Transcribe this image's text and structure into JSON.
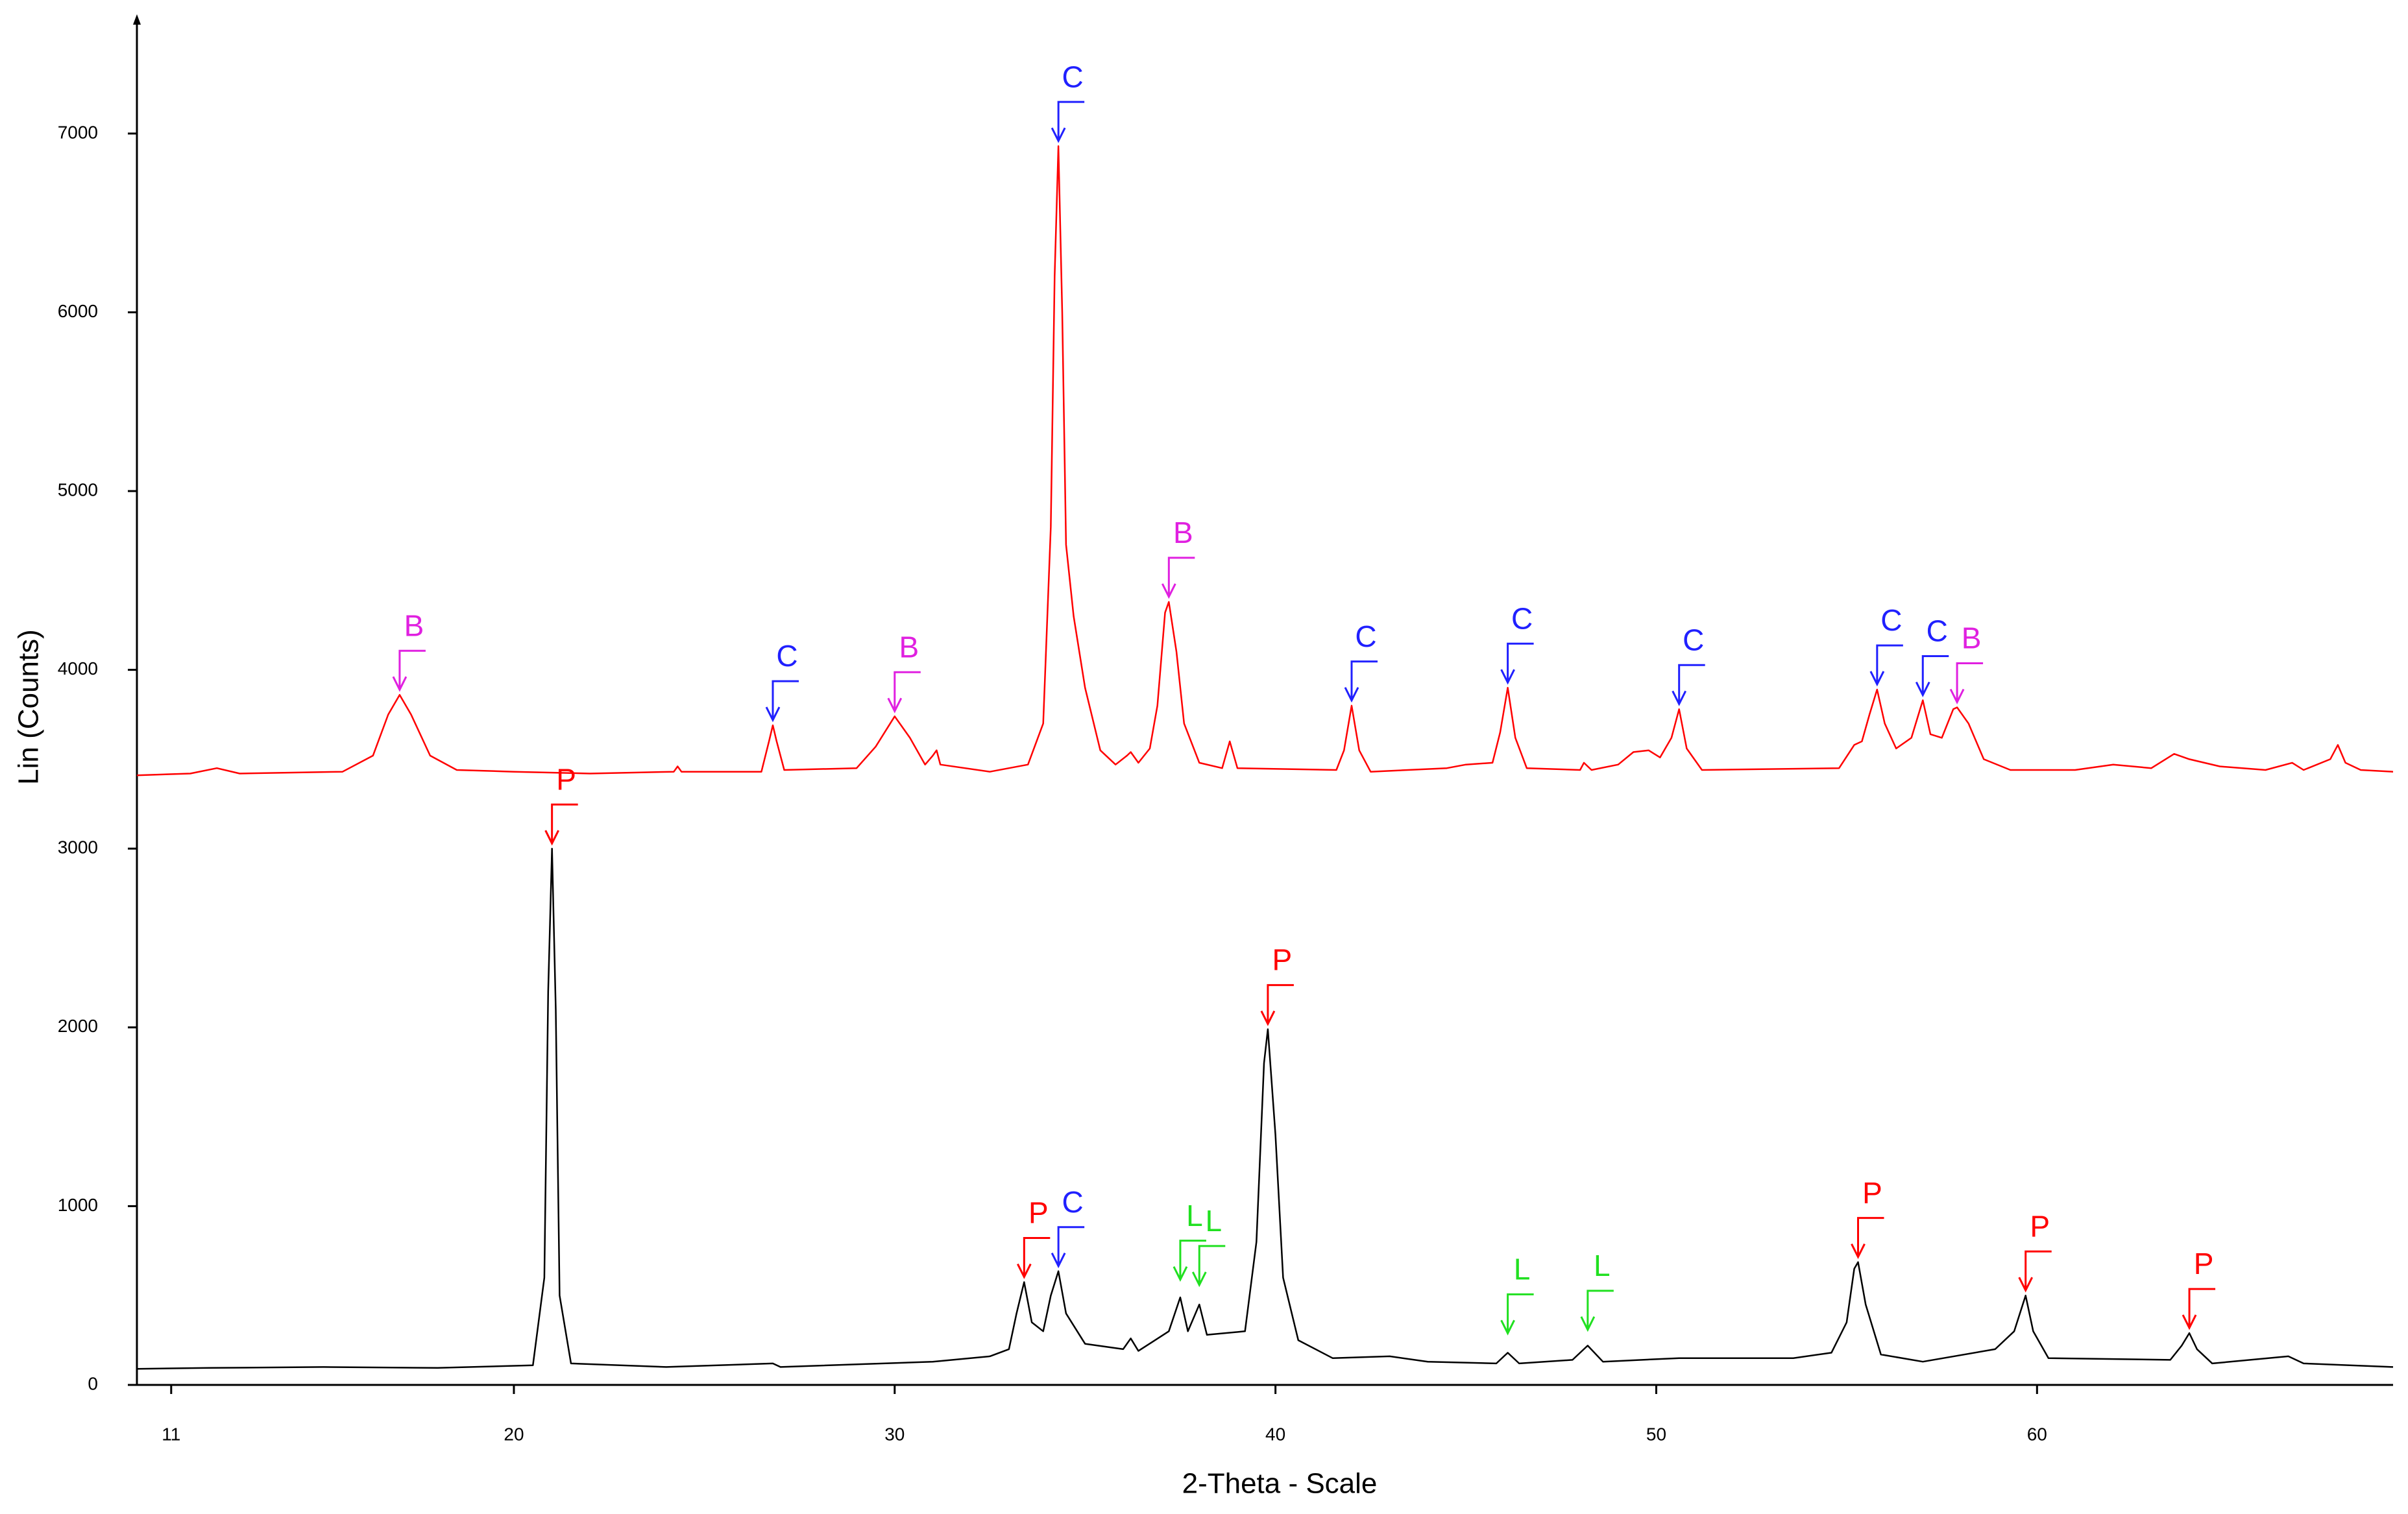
{
  "chart_data": {
    "type": "line",
    "xlabel": "2-Theta - Scale",
    "ylabel": "Lin (Counts)",
    "xlim": [
      10.1,
      69.35
    ],
    "ylim": [
      0,
      7620
    ],
    "xticks": [
      11,
      20,
      30,
      40,
      50,
      60
    ],
    "yticks": [
      0,
      1000,
      2000,
      3000,
      4000,
      5000,
      6000,
      7000
    ],
    "grid": false,
    "series": [
      {
        "color": "#ff0000",
        "x": [
          10.1,
          11.5,
          12.2,
          12.8,
          15.5,
          16.3,
          16.7,
          17.0,
          17.3,
          17.8,
          18.5,
          20,
          22,
          24.2,
          24.3,
          24.4,
          26.5,
          26.7,
          26.8,
          26.9,
          27.1,
          29.0,
          29.5,
          30.0,
          30.4,
          30.8,
          31.0,
          31.1,
          31.2,
          32.5,
          33.5,
          33.9,
          34.1,
          34.2,
          34.3,
          34.4,
          34.5,
          34.7,
          35.0,
          35.4,
          35.8,
          36.1,
          36.2,
          36.4,
          36.7,
          36.9,
          37.1,
          37.2,
          37.4,
          37.6,
          38.0,
          38.6,
          38.8,
          39.0,
          41.6,
          41.8,
          42.0,
          42.2,
          42.5,
          44.5,
          45.0,
          45.7,
          45.9,
          46.1,
          46.3,
          46.6,
          48.0,
          48.1,
          48.3,
          49.0,
          49.4,
          49.8,
          50.1,
          50.4,
          50.6,
          50.8,
          51.2,
          54.8,
          55.2,
          55.4,
          55.6,
          55.8,
          56.0,
          56.3,
          56.7,
          57.0,
          57.2,
          57.5,
          57.8,
          57.9,
          58.2,
          58.6,
          59.3,
          61.0,
          62.0,
          63.0,
          63.6,
          64.0,
          64.8,
          66.0,
          66.7,
          67.0,
          67.7,
          67.9,
          68.1,
          68.5,
          69.35
        ],
        "values": [
          3410,
          3420,
          3450,
          3420,
          3430,
          3520,
          3750,
          3860,
          3750,
          3520,
          3440,
          3430,
          3420,
          3430,
          3460,
          3430,
          3430,
          3600,
          3690,
          3600,
          3440,
          3450,
          3570,
          3740,
          3620,
          3470,
          3520,
          3550,
          3470,
          3430,
          3470,
          3700,
          4800,
          6200,
          6930,
          6000,
          4700,
          4300,
          3900,
          3550,
          3470,
          3520,
          3540,
          3480,
          3560,
          3800,
          4320,
          4380,
          4100,
          3700,
          3480,
          3450,
          3600,
          3450,
          3440,
          3550,
          3800,
          3550,
          3430,
          3450,
          3470,
          3480,
          3650,
          3900,
          3620,
          3450,
          3440,
          3480,
          3440,
          3470,
          3540,
          3550,
          3510,
          3620,
          3780,
          3560,
          3440,
          3450,
          3580,
          3600,
          3750,
          3890,
          3700,
          3560,
          3620,
          3830,
          3640,
          3620,
          3780,
          3790,
          3700,
          3500,
          3440,
          3440,
          3470,
          3450,
          3530,
          3500,
          3460,
          3440,
          3480,
          3440,
          3500,
          3580,
          3480,
          3440,
          3430
        ]
      },
      {
        "color": "#000000",
        "x": [
          10.1,
          12,
          15,
          18,
          20.5,
          20.8,
          20.9,
          21.0,
          21.1,
          21.2,
          21.5,
          24,
          26.8,
          27,
          31,
          32.5,
          33.0,
          33.2,
          33.4,
          33.6,
          33.9,
          34.1,
          34.3,
          34.5,
          35.0,
          36.0,
          36.2,
          36.4,
          37.2,
          37.5,
          37.7,
          38.0,
          38.2,
          39.2,
          39.5,
          39.7,
          39.8,
          40.0,
          40.2,
          40.6,
          41.5,
          43,
          44,
          45.8,
          46.1,
          46.4,
          47.8,
          48.2,
          48.6,
          50.6,
          53.6,
          54.6,
          55.0,
          55.2,
          55.3,
          55.5,
          55.9,
          57,
          58.9,
          59.4,
          59.7,
          59.9,
          60.3,
          63.5,
          63.8,
          64.0,
          64.2,
          64.6,
          66.6,
          67,
          69.35
        ],
        "values": [
          90,
          95,
          100,
          95,
          110,
          600,
          2200,
          3000,
          2100,
          500,
          120,
          100,
          120,
          100,
          130,
          160,
          200,
          400,
          575,
          350,
          300,
          500,
          636,
          400,
          230,
          200,
          260,
          190,
          300,
          490,
          300,
          450,
          280,
          300,
          800,
          1800,
          1990,
          1400,
          600,
          250,
          150,
          160,
          130,
          120,
          180,
          120,
          140,
          220,
          130,
          150,
          150,
          180,
          350,
          650,
          687,
          450,
          170,
          130,
          200,
          300,
          500,
          300,
          150,
          140,
          220,
          290,
          200,
          120,
          160,
          120,
          100
        ]
      }
    ],
    "annotations": [
      {
        "text": "B",
        "x": 17.0,
        "y": 3860,
        "color": "#e020e0"
      },
      {
        "text": "C",
        "x": 26.8,
        "y": 3690,
        "color": "#2020ff"
      },
      {
        "text": "B",
        "x": 30.0,
        "y": 3740,
        "color": "#e020e0"
      },
      {
        "text": "C",
        "x": 34.3,
        "y": 6930,
        "color": "#2020ff"
      },
      {
        "text": "B",
        "x": 37.2,
        "y": 4380,
        "color": "#e020e0"
      },
      {
        "text": "C",
        "x": 42.0,
        "y": 3800,
        "color": "#2020ff"
      },
      {
        "text": "C",
        "x": 46.1,
        "y": 3900,
        "color": "#2020ff"
      },
      {
        "text": "C",
        "x": 50.6,
        "y": 3780,
        "color": "#2020ff"
      },
      {
        "text": "C",
        "x": 55.8,
        "y": 3890,
        "color": "#2020ff"
      },
      {
        "text": "C",
        "x": 57.0,
        "y": 3830,
        "color": "#2020ff"
      },
      {
        "text": "B",
        "x": 57.9,
        "y": 3790,
        "color": "#e020e0"
      },
      {
        "text": "P",
        "x": 21.0,
        "y": 3000,
        "color": "#ff0000"
      },
      {
        "text": "P",
        "x": 33.4,
        "y": 575,
        "color": "#ff0000"
      },
      {
        "text": "C",
        "x": 34.3,
        "y": 636,
        "color": "#2020ff"
      },
      {
        "text": "L",
        "x": 37.5,
        "y": 560,
        "color": "#20e020"
      },
      {
        "text": "L",
        "x": 38.0,
        "y": 530,
        "color": "#20e020"
      },
      {
        "text": "P",
        "x": 39.8,
        "y": 1990,
        "color": "#ff0000"
      },
      {
        "text": "L",
        "x": 46.1,
        "y": 260,
        "color": "#20e020"
      },
      {
        "text": "L",
        "x": 48.2,
        "y": 280,
        "color": "#20e020"
      },
      {
        "text": "P",
        "x": 55.3,
        "y": 687,
        "color": "#ff0000"
      },
      {
        "text": "P",
        "x": 59.7,
        "y": 500,
        "color": "#ff0000"
      },
      {
        "text": "P",
        "x": 64.0,
        "y": 290,
        "color": "#ff0000"
      }
    ]
  }
}
